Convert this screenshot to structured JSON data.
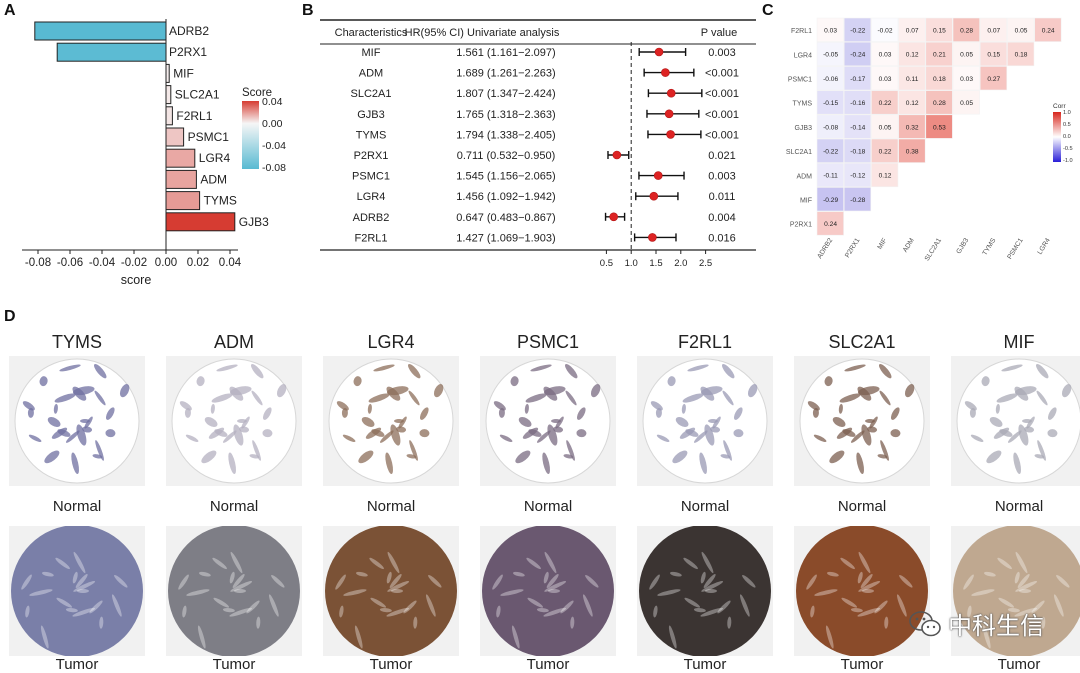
{
  "panels": {
    "a": "A",
    "b": "B",
    "c": "C",
    "d": "D"
  },
  "chart_data": [
    {
      "type": "bar",
      "orientation": "horizontal",
      "categories": [
        "ADRB2",
        "P2RX1",
        "MIF",
        "SLC2A1",
        "F2RL1",
        "PSMC1",
        "LGR4",
        "ADM",
        "TYMS",
        "GJB3"
      ],
      "values": [
        -0.082,
        -0.068,
        0.002,
        0.003,
        0.004,
        0.011,
        0.018,
        0.019,
        0.021,
        0.043
      ],
      "xlabel": "score",
      "xticks": [
        "-0.08",
        "-0.06",
        "-0.04",
        "-0.02",
        "0.00",
        "0.02",
        "0.04"
      ],
      "xlim": [
        -0.09,
        0.045
      ],
      "legend": {
        "title": "Score",
        "ticks": [
          "0.04",
          "0.00",
          "-0.04",
          "-0.08"
        ]
      }
    },
    {
      "type": "table",
      "subtype": "forest",
      "headers": [
        "Characteristics",
        "HR(95% CI) Univariate analysis",
        "P value"
      ],
      "rows": [
        {
          "gene": "MIF",
          "hr_text": "1.561 (1.161−2.097)",
          "hr": 1.561,
          "lo": 1.161,
          "hi": 2.097,
          "p": "0.003"
        },
        {
          "gene": "ADM",
          "hr_text": "1.689 (1.261−2.263)",
          "hr": 1.689,
          "lo": 1.261,
          "hi": 2.263,
          "p": "<0.001"
        },
        {
          "gene": "SLC2A1",
          "hr_text": "1.807 (1.347−2.424)",
          "hr": 1.807,
          "lo": 1.347,
          "hi": 2.424,
          "p": "<0.001"
        },
        {
          "gene": "GJB3",
          "hr_text": "1.765 (1.318−2.363)",
          "hr": 1.765,
          "lo": 1.318,
          "hi": 2.363,
          "p": "<0.001"
        },
        {
          "gene": "TYMS",
          "hr_text": "1.794 (1.338−2.405)",
          "hr": 1.794,
          "lo": 1.338,
          "hi": 2.405,
          "p": "<0.001"
        },
        {
          "gene": "P2RX1",
          "hr_text": "0.711 (0.532−0.950)",
          "hr": 0.711,
          "lo": 0.532,
          "hi": 0.95,
          "p": "0.021"
        },
        {
          "gene": "PSMC1",
          "hr_text": "1.545 (1.156−2.065)",
          "hr": 1.545,
          "lo": 1.156,
          "hi": 2.065,
          "p": "0.003"
        },
        {
          "gene": "LGR4",
          "hr_text": "1.456 (1.092−1.942)",
          "hr": 1.456,
          "lo": 1.092,
          "hi": 1.942,
          "p": "0.011"
        },
        {
          "gene": "ADRB2",
          "hr_text": "0.647 (0.483−0.867)",
          "hr": 0.647,
          "lo": 0.483,
          "hi": 0.867,
          "p": "0.004"
        },
        {
          "gene": "F2RL1",
          "hr_text": "1.427 (1.069−1.903)",
          "hr": 1.427,
          "lo": 1.069,
          "hi": 1.903,
          "p": "0.016"
        }
      ],
      "xticks": [
        "0.5",
        "1.0",
        "1.5",
        "2.0",
        "2.5"
      ],
      "xlim": [
        0.25,
        2.75
      ]
    },
    {
      "type": "heatmap",
      "genes_bottom": [
        "ADRB2",
        "P2RX1",
        "MIF",
        "ADM",
        "SLC2A1",
        "GJB3",
        "TYMS",
        "PSMC1",
        "LGR4"
      ],
      "rows": [
        {
          "label": "F2RL1",
          "values": [
            "0.03",
            "-0.22",
            "-0.02",
            "0.07",
            "0.15",
            "0.28",
            "0.07",
            "0.05",
            "0.24"
          ]
        },
        {
          "label": "LGR4",
          "values": [
            "-0.05",
            "-0.24",
            "0.03",
            "0.12",
            "0.21",
            "0.05",
            "0.15",
            "0.18"
          ]
        },
        {
          "label": "PSMC1",
          "values": [
            "-0.06",
            "-0.17",
            "0.03",
            "0.11",
            "0.18",
            "0.03",
            "0.27"
          ]
        },
        {
          "label": "TYMS",
          "values": [
            "-0.15",
            "-0.16",
            "0.22",
            "0.12",
            "0.28",
            "0.05"
          ]
        },
        {
          "label": "GJB3",
          "values": [
            "-0.08",
            "-0.14",
            "0.05",
            "0.32",
            "0.53"
          ]
        },
        {
          "label": "SLC2A1",
          "values": [
            "-0.22",
            "-0.18",
            "0.22",
            "0.38"
          ]
        },
        {
          "label": "ADM",
          "values": [
            "-0.11",
            "-0.12",
            "0.12"
          ]
        },
        {
          "label": "MIF",
          "values": [
            "-0.29",
            "-0.28"
          ]
        },
        {
          "label": "P2RX1",
          "values": [
            "0.24"
          ]
        }
      ],
      "legend": {
        "title": "Corr",
        "ticks": [
          "1.0",
          "0.5",
          "0.0",
          "-0.5",
          "-1.0"
        ]
      }
    }
  ],
  "ihc": {
    "normal_label": "Normal",
    "tumor_label": "Tumor",
    "genes": [
      "TYMS",
      "ADM",
      "LGR4",
      "PSMC1",
      "F2RL1",
      "SLC2A1",
      "MIF"
    ],
    "normal_colors": [
      "#6f6fa0",
      "#b4b0c0",
      "#8c6e5a",
      "#7a6b82",
      "#9a9ab4",
      "#7c5f50",
      "#a9a9b6"
    ],
    "tumor_colors": [
      "#7a7fa8",
      "#7e7e86",
      "#7b5236",
      "#6a5870",
      "#3b3432",
      "#8a4b2a",
      "#bfa890"
    ]
  },
  "watermark": {
    "text": "中科生信",
    "icon": "wechat-icon"
  }
}
